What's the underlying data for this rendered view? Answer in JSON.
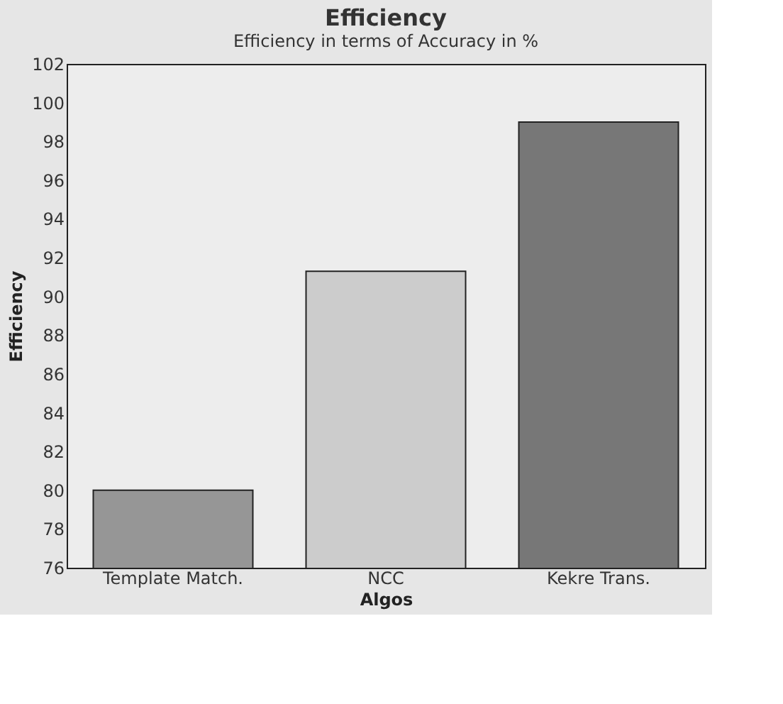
{
  "chart_data": {
    "type": "bar",
    "title": "Efficiency",
    "subtitle": "Efficiency in terms of Accuracy in %",
    "xlabel": "Algos",
    "ylabel": "Efficiency",
    "categories": [
      "Template Match.",
      "NCC",
      "Kekre Trans."
    ],
    "values": [
      80,
      91.3,
      99
    ],
    "colors": [
      "#969696",
      "#cccccc",
      "#777777"
    ],
    "ylim": [
      76,
      102
    ],
    "yticks": [
      76,
      78,
      80,
      82,
      84,
      86,
      88,
      90,
      92,
      94,
      96,
      98,
      100,
      102
    ],
    "grid": false,
    "legend": false
  }
}
